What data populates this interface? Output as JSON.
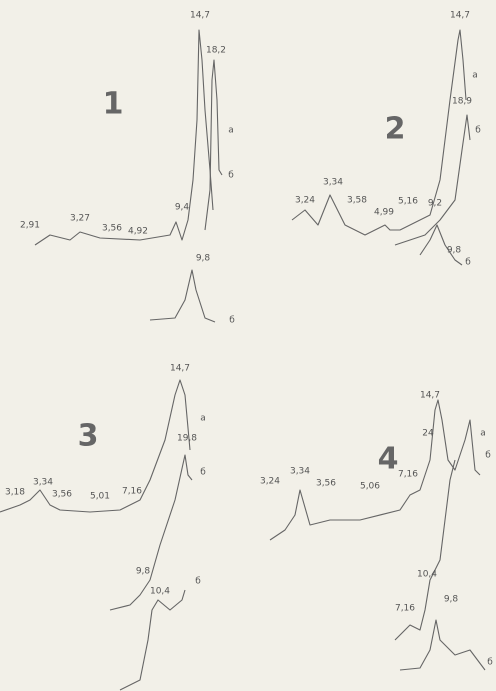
{
  "panels": [
    {
      "label": "1",
      "annotations": [
        "14,7",
        "18,2",
        "а",
        "б",
        "2,91",
        "3,27",
        "3,56",
        "4,92",
        "9,4",
        "9,8",
        "б"
      ]
    },
    {
      "label": "2",
      "annotations": [
        "14,7",
        "а",
        "18,9",
        "б",
        "3,24",
        "3,34",
        "3,58",
        "4,99",
        "5,16",
        "9,2",
        "9,8",
        "б"
      ]
    },
    {
      "label": "3",
      "annotations": [
        "14,7",
        "а",
        "19,8",
        "б",
        "3,18",
        "3,34",
        "3,56",
        "5,01",
        "7,16",
        "9,8",
        "10,4",
        "б"
      ]
    },
    {
      "label": "4",
      "annotations": [
        "14,7",
        "24",
        "а",
        "б",
        "3,24",
        "3,34",
        "3,56",
        "5,06",
        "7,16",
        "10,4",
        "7,16",
        "9,8",
        "б"
      ]
    }
  ]
}
